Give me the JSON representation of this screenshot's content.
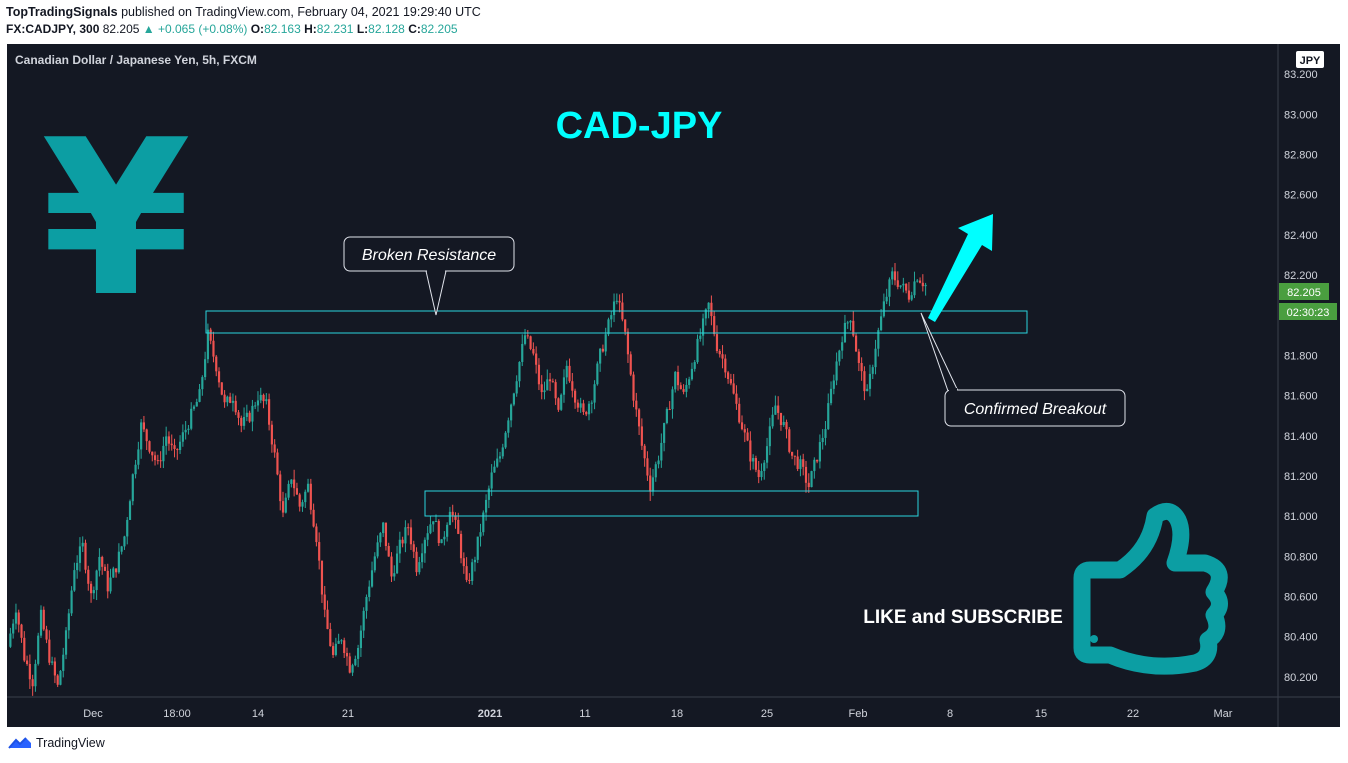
{
  "header": {
    "publisher": "TopTradingSignals",
    "published_text": "published on TradingView.com, February 04, 2021 19:29:40 UTC",
    "symbol": "FX:CADJPY, 300",
    "last": "82.205",
    "change": "▲ +0.065 (+0.08%)",
    "o_label": "O:",
    "o_value": "82.163",
    "h_label": "H:",
    "h_value": "82.231",
    "l_label": "L:",
    "l_value": "82.128",
    "c_label": "C:",
    "c_value": "82.205"
  },
  "chart_data": {
    "type": "candlestick",
    "title": "CAD-JPY",
    "subtitle": "Canadian Dollar / Japanese Yen, 5h, FXCM",
    "currency": "JPY",
    "ylim": [
      80.1,
      83.35
    ],
    "y_ticks": [
      "83.200",
      "83.000",
      "82.800",
      "82.600",
      "82.400",
      "82.200",
      "82.000",
      "81.800",
      "81.600",
      "81.400",
      "81.200",
      "81.000",
      "80.800",
      "80.600",
      "80.400",
      "80.200"
    ],
    "x_ticks": [
      "Dec",
      "18:00",
      "14",
      "21",
      "2021",
      "11",
      "18",
      "25",
      "Feb",
      "8",
      "15",
      "22",
      "Mar"
    ],
    "price_label": "82.205",
    "countdown_label": "02:30:23",
    "path_points": [
      [
        0,
        80.35
      ],
      [
        3,
        80.55
      ],
      [
        6,
        80.3
      ],
      [
        9,
        80.18
      ],
      [
        12,
        80.5
      ],
      [
        15,
        80.3
      ],
      [
        18,
        80.15
      ],
      [
        21,
        80.4
      ],
      [
        24,
        80.75
      ],
      [
        27,
        80.85
      ],
      [
        30,
        80.6
      ],
      [
        33,
        80.8
      ],
      [
        36,
        80.65
      ],
      [
        39,
        80.75
      ],
      [
        42,
        80.9
      ],
      [
        45,
        81.2
      ],
      [
        48,
        81.45
      ],
      [
        51,
        81.35
      ],
      [
        54,
        81.25
      ],
      [
        57,
        81.4
      ],
      [
        60,
        81.3
      ],
      [
        63,
        81.4
      ],
      [
        66,
        81.5
      ],
      [
        69,
        81.6
      ],
      [
        72,
        81.9
      ],
      [
        75,
        81.75
      ],
      [
        78,
        81.55
      ],
      [
        81,
        81.6
      ],
      [
        84,
        81.45
      ],
      [
        87,
        81.5
      ],
      [
        90,
        81.6
      ],
      [
        93,
        81.55
      ],
      [
        96,
        81.3
      ],
      [
        99,
        81.0
      ],
      [
        102,
        81.2
      ],
      [
        105,
        81.05
      ],
      [
        108,
        81.15
      ],
      [
        111,
        80.9
      ],
      [
        114,
        80.5
      ],
      [
        117,
        80.3
      ],
      [
        120,
        80.4
      ],
      [
        123,
        80.25
      ],
      [
        126,
        80.35
      ],
      [
        129,
        80.6
      ],
      [
        132,
        80.8
      ],
      [
        135,
        80.95
      ],
      [
        138,
        80.7
      ],
      [
        141,
        80.85
      ],
      [
        144,
        80.95
      ],
      [
        147,
        80.75
      ],
      [
        150,
        80.9
      ],
      [
        153,
        81.0
      ],
      [
        156,
        80.85
      ],
      [
        159,
        81.05
      ],
      [
        162,
        80.9
      ],
      [
        165,
        80.65
      ],
      [
        168,
        80.8
      ],
      [
        171,
        81.0
      ],
      [
        174,
        81.2
      ],
      [
        177,
        81.3
      ],
      [
        180,
        81.5
      ],
      [
        183,
        81.7
      ],
      [
        186,
        81.9
      ],
      [
        189,
        81.8
      ],
      [
        192,
        81.6
      ],
      [
        195,
        81.7
      ],
      [
        198,
        81.5
      ],
      [
        201,
        81.75
      ],
      [
        204,
        81.6
      ],
      [
        207,
        81.5
      ],
      [
        210,
        81.6
      ],
      [
        213,
        81.8
      ],
      [
        216,
        81.95
      ],
      [
        219,
        82.1
      ],
      [
        222,
        81.9
      ],
      [
        225,
        81.6
      ],
      [
        228,
        81.35
      ],
      [
        231,
        81.15
      ],
      [
        234,
        81.3
      ],
      [
        237,
        81.5
      ],
      [
        240,
        81.7
      ],
      [
        243,
        81.6
      ],
      [
        246,
        81.75
      ],
      [
        249,
        81.9
      ],
      [
        252,
        82.05
      ],
      [
        255,
        81.85
      ],
      [
        258,
        81.75
      ],
      [
        261,
        81.6
      ],
      [
        264,
        81.45
      ],
      [
        267,
        81.3
      ],
      [
        270,
        81.2
      ],
      [
        273,
        81.35
      ],
      [
        276,
        81.55
      ],
      [
        279,
        81.45
      ],
      [
        282,
        81.3
      ],
      [
        285,
        81.25
      ],
      [
        288,
        81.15
      ],
      [
        291,
        81.3
      ],
      [
        294,
        81.45
      ],
      [
        297,
        81.7
      ],
      [
        300,
        81.9
      ],
      [
        303,
        82.0
      ],
      [
        306,
        81.75
      ],
      [
        309,
        81.6
      ],
      [
        312,
        81.85
      ],
      [
        315,
        82.05
      ],
      [
        318,
        82.2
      ],
      [
        321,
        82.15
      ],
      [
        324,
        82.1
      ],
      [
        327,
        82.2
      ],
      [
        330,
        82.15
      ]
    ]
  },
  "annotations": {
    "resistance_label": "Broken Resistance",
    "breakout_label": "Confirmed Breakout",
    "cta": "LIKE and SUBSCRIBE",
    "yen_symbol": "¥"
  },
  "colors": {
    "background": "#141823",
    "up": "#26a69a",
    "down": "#ef5350",
    "accent": "#00ffff",
    "icon_teal": "#0c9ea3",
    "price_tag": "#4a9e3f"
  },
  "footer": {
    "brand": "TradingView"
  }
}
